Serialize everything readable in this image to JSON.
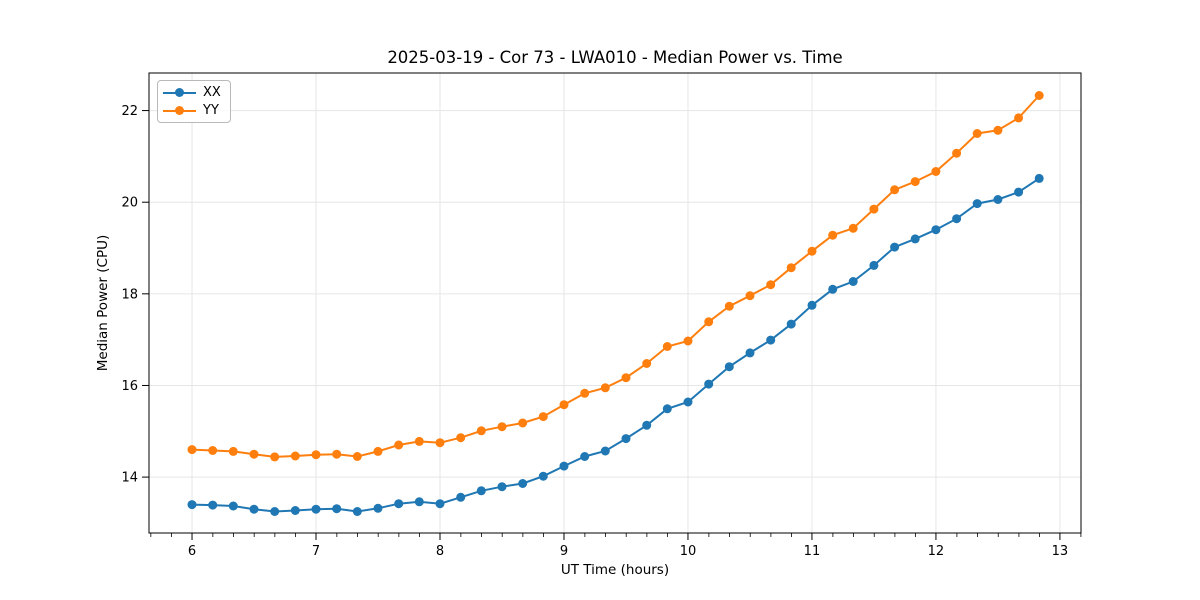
{
  "chart_data": {
    "type": "line",
    "title": "2025-03-19 - Cor 73 - LWA010 - Median Power vs. Time",
    "xlabel": "UT Time (hours)",
    "ylabel": "Median Power (CPU)",
    "xlim": [
      5.653,
      13.17
    ],
    "ylim": [
      12.78,
      22.82
    ],
    "xticks": [
      6,
      7,
      8,
      9,
      10,
      11,
      12,
      13
    ],
    "yticks": [
      14,
      16,
      18,
      20,
      22
    ],
    "x_minor_tick_step_hours": 0.1667,
    "grid": true,
    "grid_color": "#e6e6e6",
    "legend_position": "upper-left",
    "x": [
      6.0,
      6.167,
      6.333,
      6.5,
      6.667,
      6.833,
      7.0,
      7.167,
      7.333,
      7.5,
      7.667,
      7.833,
      8.0,
      8.167,
      8.333,
      8.5,
      8.667,
      8.833,
      9.0,
      9.167,
      9.333,
      9.5,
      9.667,
      9.833,
      10.0,
      10.167,
      10.333,
      10.5,
      10.667,
      10.833,
      11.0,
      11.167,
      11.333,
      11.5,
      11.667,
      11.833,
      12.0,
      12.167,
      12.333,
      12.5,
      12.667,
      12.833
    ],
    "series": [
      {
        "name": "XX",
        "color": "#1f77b4",
        "values": [
          13.4,
          13.39,
          13.37,
          13.3,
          13.25,
          13.27,
          13.3,
          13.31,
          13.25,
          13.32,
          13.42,
          13.46,
          13.42,
          13.56,
          13.7,
          13.79,
          13.86,
          14.02,
          14.24,
          14.45,
          14.57,
          14.84,
          15.13,
          15.49,
          15.64,
          16.03,
          16.41,
          16.71,
          16.99,
          17.34,
          17.75,
          18.1,
          18.27,
          18.62,
          19.02,
          19.2,
          19.4,
          19.64,
          19.97,
          20.06,
          20.22,
          20.52
        ]
      },
      {
        "name": "YY",
        "color": "#ff7f0e",
        "values": [
          14.6,
          14.58,
          14.56,
          14.5,
          14.44,
          14.46,
          14.49,
          14.5,
          14.45,
          14.56,
          14.7,
          14.78,
          14.75,
          14.86,
          15.01,
          15.1,
          15.18,
          15.32,
          15.58,
          15.83,
          15.95,
          16.17,
          16.48,
          16.85,
          16.97,
          17.39,
          17.73,
          17.96,
          18.2,
          18.57,
          18.93,
          19.28,
          19.43,
          19.85,
          20.27,
          20.45,
          20.67,
          21.07,
          21.5,
          21.57,
          21.84,
          22.33
        ]
      }
    ]
  }
}
